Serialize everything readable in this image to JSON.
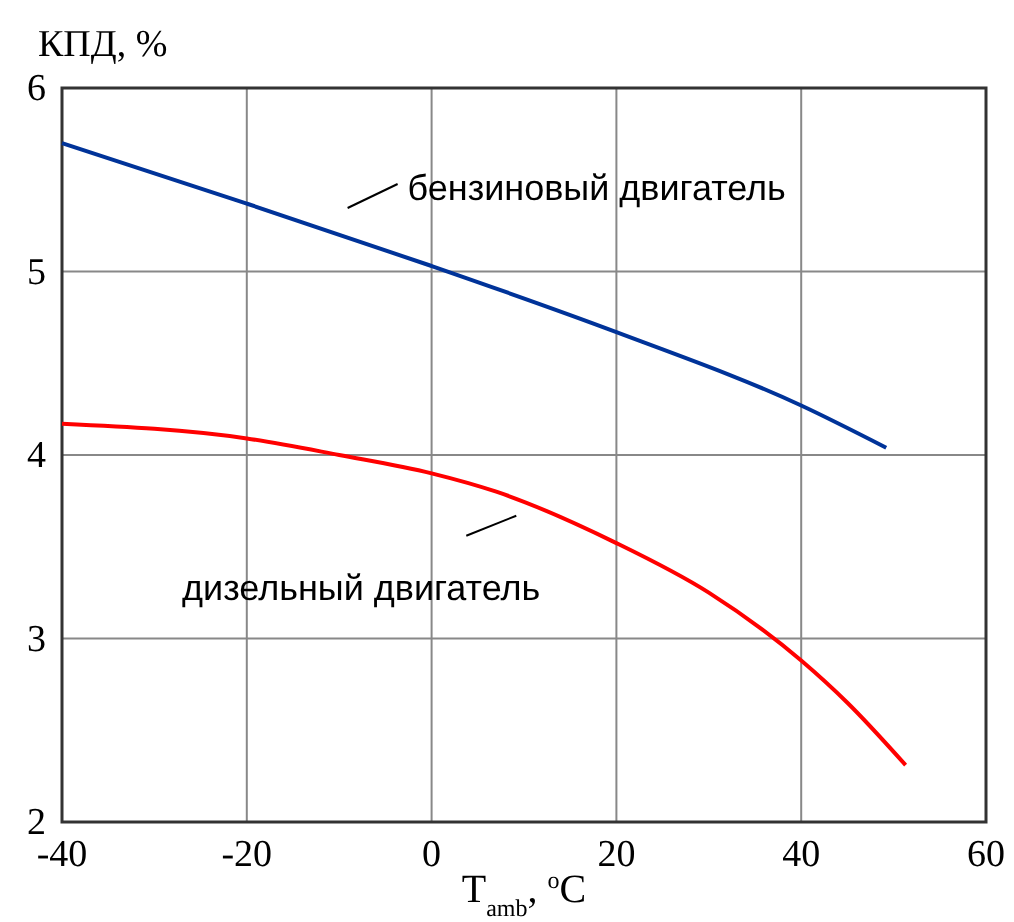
{
  "chart_data": {
    "type": "line",
    "xlabel": "T$_{amb}$, $^{o}$C",
    "ylabel": "КПД, %",
    "xlim": [
      -40,
      60
    ],
    "xticks": [
      -40,
      -20,
      0,
      20,
      40,
      60
    ],
    "ylim": [
      2,
      6
    ],
    "yticks": [
      2,
      3,
      4,
      5,
      6
    ],
    "grid": true,
    "series": [
      {
        "name": "бензиновый двигатель",
        "color": "#003399",
        "x": [
          -40,
          -20,
          0,
          20,
          40,
          49.2
        ],
        "values": [
          5.7,
          5.37,
          5.03,
          4.67,
          4.27,
          4.04
        ]
      },
      {
        "name": "дизельный двигатель",
        "color": "#ff0000",
        "x": [
          -40,
          -20,
          -10,
          0,
          7,
          20,
          30,
          40,
          45,
          51.3
        ],
        "values": [
          4.17,
          4.09,
          4.0,
          3.9,
          3.8,
          3.52,
          3.25,
          2.88,
          2.65,
          2.31
        ]
      }
    ]
  }
}
